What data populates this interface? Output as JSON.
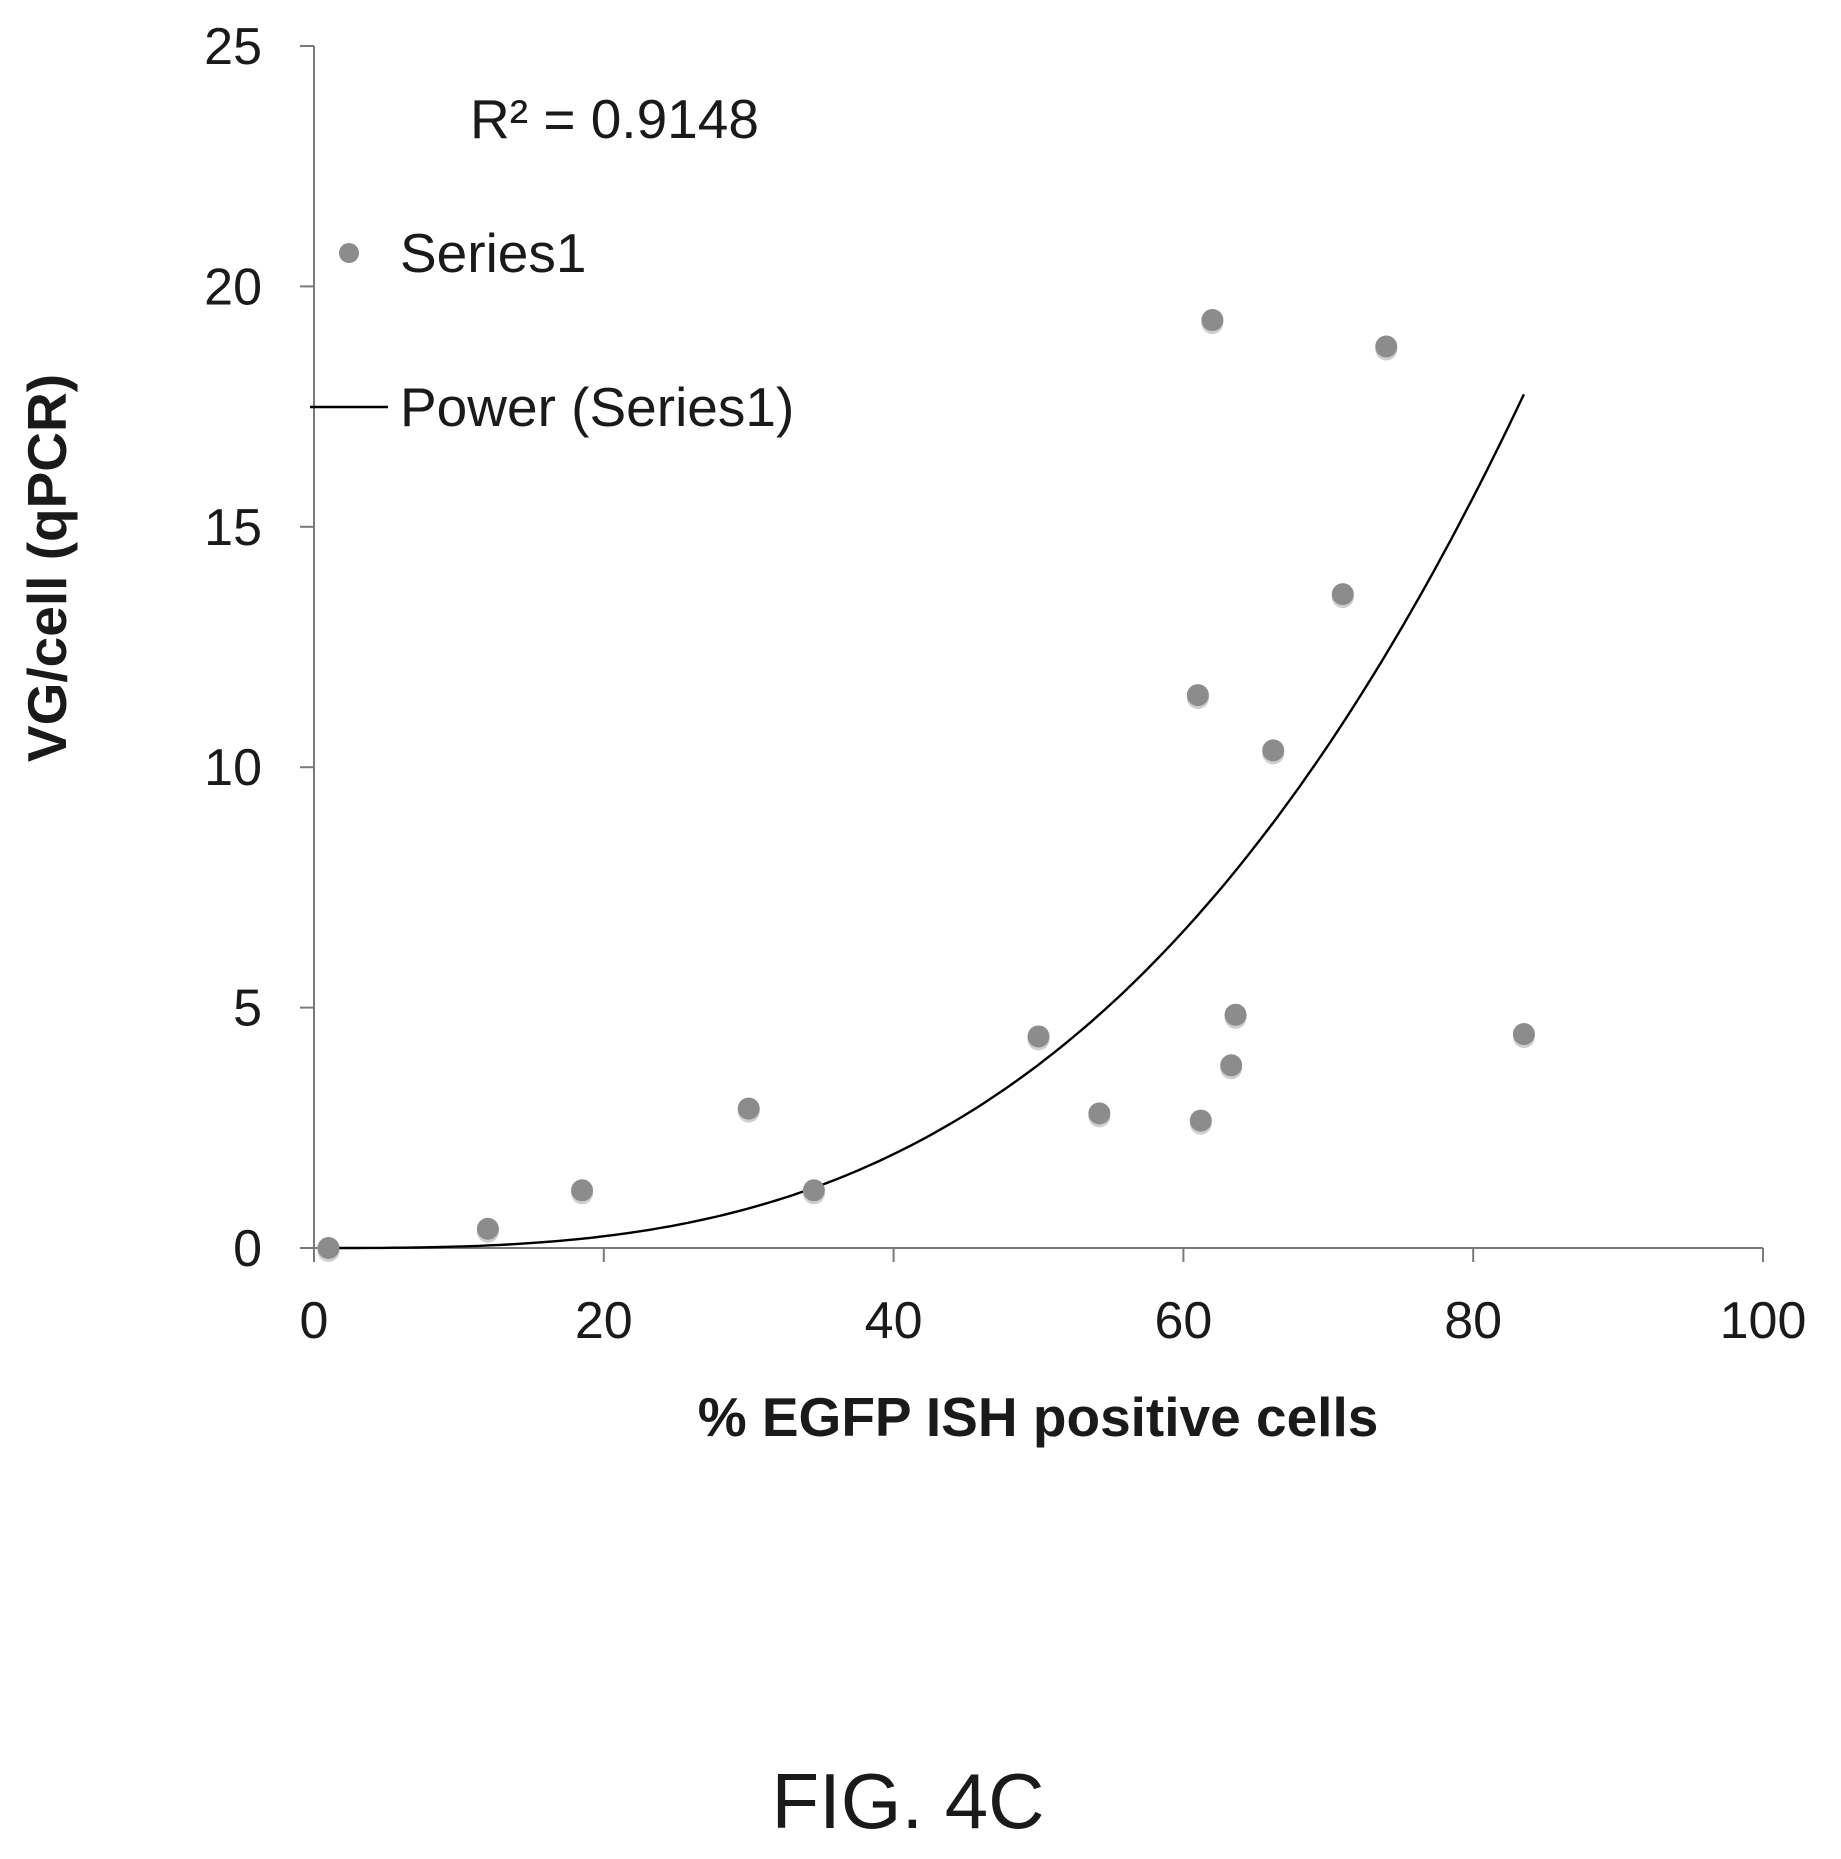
{
  "chart_data": {
    "type": "scatter",
    "xlabel": "% EGFP ISH positive cells",
    "ylabel": "VG/cell (qPCR)",
    "xlim": [
      0,
      100
    ],
    "ylim": [
      0,
      25
    ],
    "x_ticks": [
      "0",
      "20",
      "40",
      "60",
      "80",
      "100"
    ],
    "y_ticks": [
      "0",
      "5",
      "10",
      "15",
      "20",
      "25"
    ],
    "grid": false,
    "legend_position": "top-left",
    "annotation": "R² = 0.9148",
    "point_color": "#8c8c8c",
    "line_color": "#000000",
    "series": [
      {
        "name": "Series1",
        "kind": "scatter",
        "points": [
          {
            "x": 1,
            "y": 0
          },
          {
            "x": 12,
            "y": 0.4
          },
          {
            "x": 18.5,
            "y": 1.2
          },
          {
            "x": 30,
            "y": 2.9
          },
          {
            "x": 34.5,
            "y": 1.2
          },
          {
            "x": 50,
            "y": 4.4
          },
          {
            "x": 54.2,
            "y": 2.8
          },
          {
            "x": 61,
            "y": 11.5
          },
          {
            "x": 61.2,
            "y": 2.65
          },
          {
            "x": 62,
            "y": 19.3
          },
          {
            "x": 63.3,
            "y": 3.8
          },
          {
            "x": 63.6,
            "y": 4.85
          },
          {
            "x": 66.2,
            "y": 10.35
          },
          {
            "x": 71,
            "y": 13.6
          },
          {
            "x": 74,
            "y": 18.75
          },
          {
            "x": 83.5,
            "y": 4.45
          }
        ]
      },
      {
        "name": "Power (Series1)",
        "kind": "trendline",
        "fit": "power",
        "x_range": [
          1,
          83.5
        ],
        "coefficient": 3.05e-05,
        "exponent": 3.0
      }
    ]
  },
  "caption": "FIG. 4C"
}
